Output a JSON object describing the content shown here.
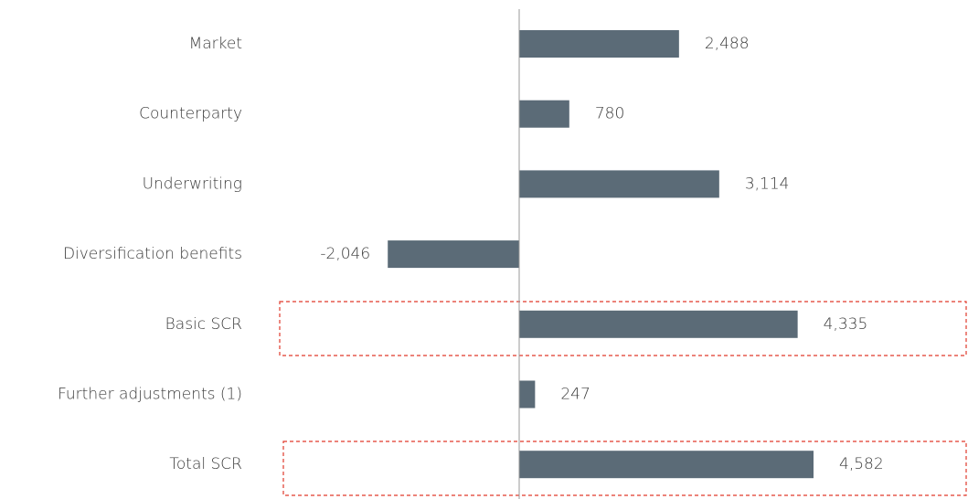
{
  "chart_data": {
    "type": "bar",
    "orientation": "horizontal",
    "categories": [
      "Market",
      "Counterparty",
      "Underwriting",
      "Diversification benefits",
      "Basic SCR",
      "Further adjustments (1)",
      "Total SCR"
    ],
    "values": [
      2488,
      780,
      3114,
      -2046,
      4335,
      247,
      4582
    ],
    "value_labels": [
      "2,488",
      "780",
      "3,114",
      "-2,046",
      "4,335",
      "247",
      "4,582"
    ],
    "color": "#5b6b77"
  }
}
